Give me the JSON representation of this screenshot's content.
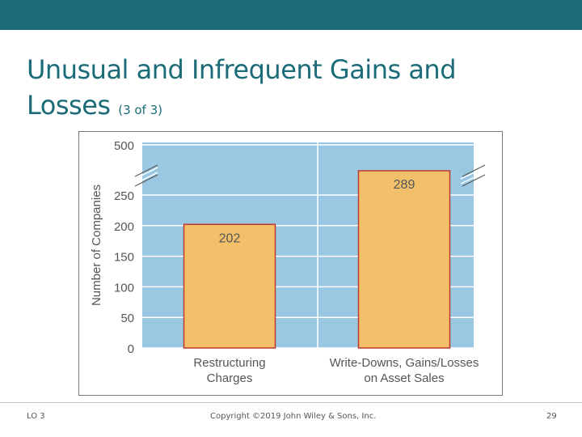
{
  "slide": {
    "title_main": "Unusual and Infrequent Gains and Losses",
    "title_sub": "(3 of 3)",
    "footer_left": "LO 3",
    "footer_center": "Copyright ©2019 John Wiley & Sons, Inc.",
    "footer_right": "29"
  },
  "colors": {
    "band": "#1b6b78",
    "plot_bg": "#9ac7e1",
    "bar_fill": "#f2c06b",
    "bar_stroke": "#c0392b",
    "grid": "#ffffff",
    "axis_text": "#555555"
  },
  "chart_data": {
    "type": "bar",
    "title": "",
    "xlabel": "",
    "ylabel": "Number of Companies",
    "categories": [
      [
        "Restructuring",
        "Charges"
      ],
      [
        "Write-Downs, Gains/Losses",
        "on Asset Sales"
      ]
    ],
    "values": [
      202,
      289
    ],
    "value_labels": [
      "202",
      "289"
    ],
    "yticks": [
      0,
      50,
      100,
      150,
      200,
      250,
      500
    ],
    "ytick_labels": [
      "0",
      "50",
      "100",
      "150",
      "200",
      "250",
      "500"
    ],
    "ylim": [
      0,
      500
    ],
    "axis_break": "between 250 and 500",
    "grid": true
  }
}
